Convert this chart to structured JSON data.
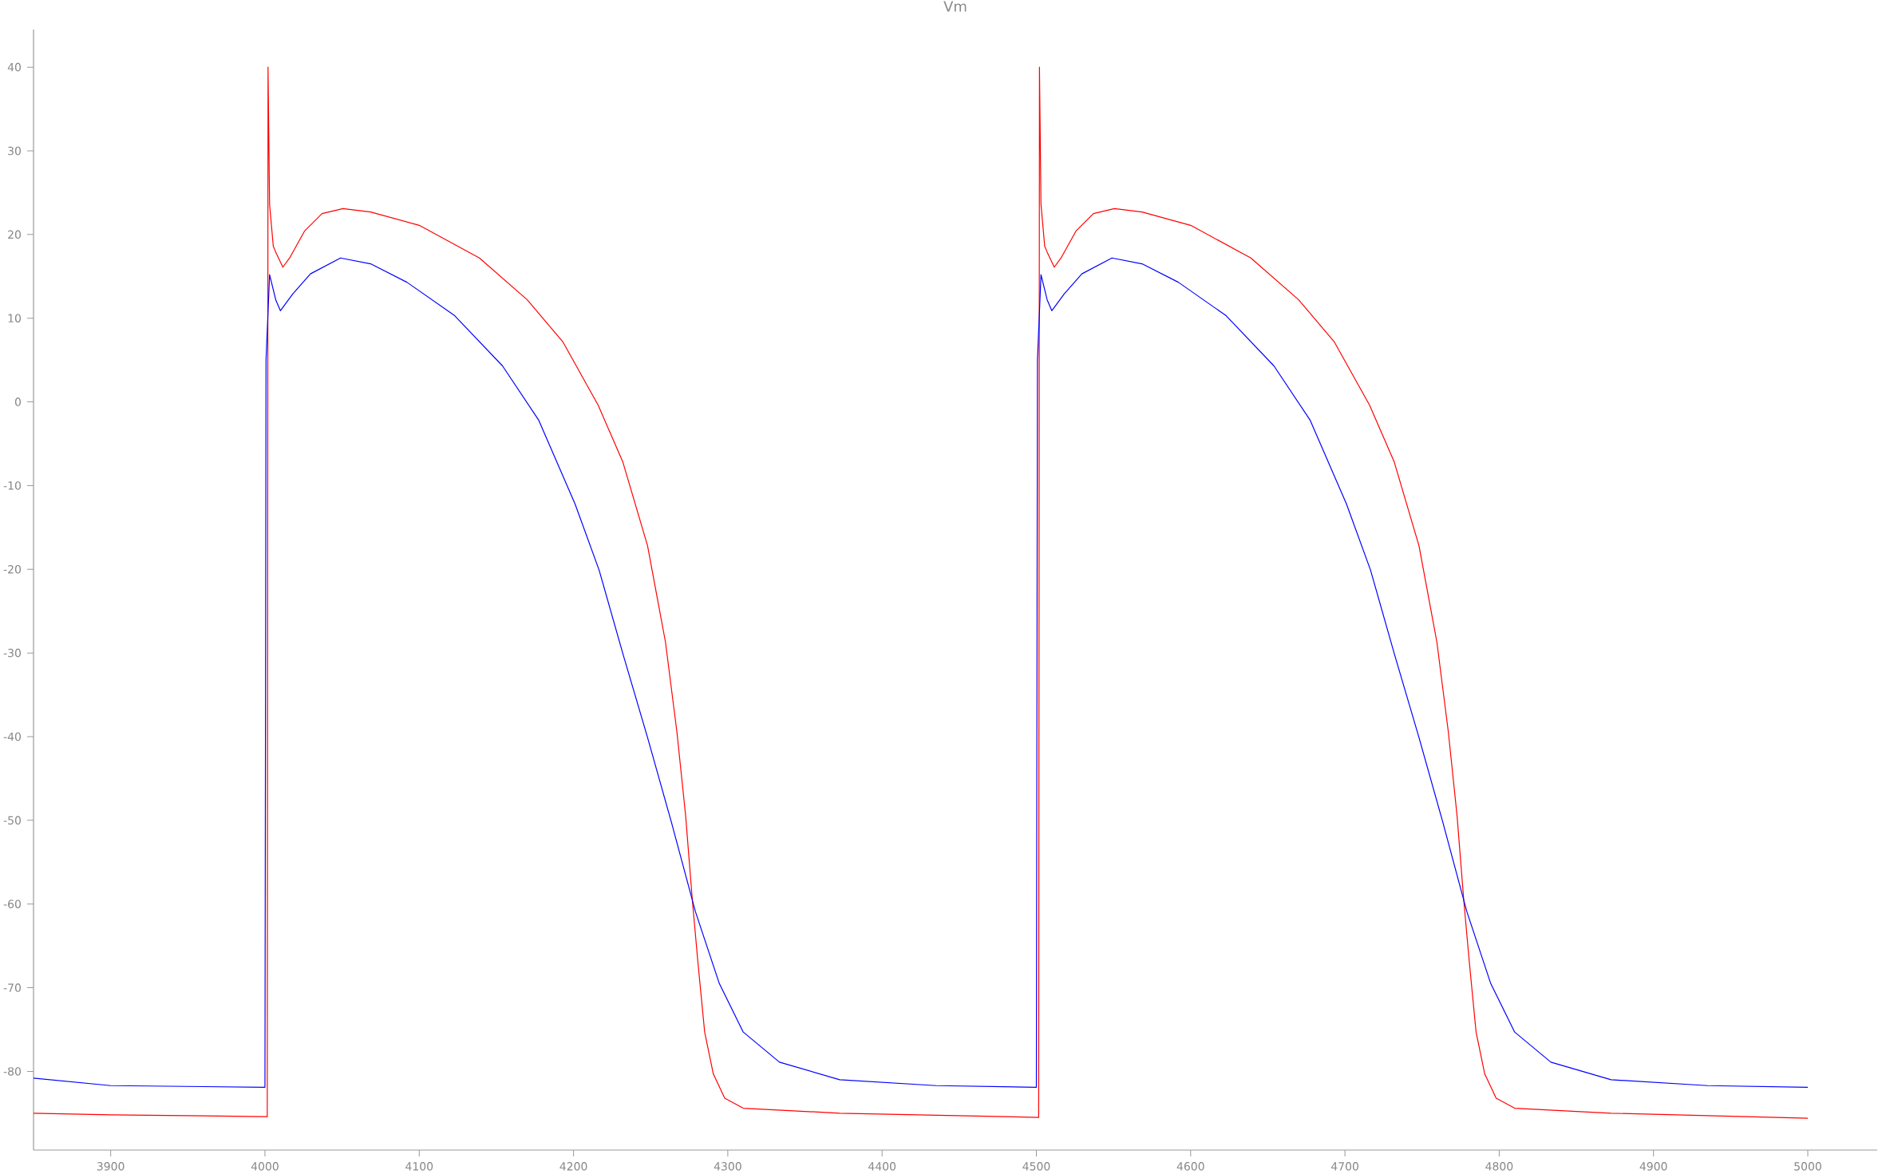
{
  "chart_data": {
    "type": "line",
    "title": "Vm",
    "xlim": [
      3850,
      5045
    ],
    "ylim": [
      -89.4,
      44.5
    ],
    "xticks": [
      3900,
      4000,
      4100,
      4200,
      4300,
      4400,
      4500,
      4600,
      4700,
      4800,
      4900,
      5000
    ],
    "yticks": [
      -80,
      -70,
      -60,
      -50,
      -40,
      -30,
      -20,
      -10,
      0,
      10,
      20,
      30,
      40
    ],
    "series": [
      {
        "color": "#ff0000",
        "x": [
          3850,
          3900,
          4000,
          4001.5,
          4002,
          4003,
          4005.4,
          4007,
          4011.6,
          4016,
          4025.6,
          4037,
          4050.6,
          4068.5,
          4100,
          4139,
          4170,
          4193,
          4216,
          4232,
          4248,
          4259.6,
          4267,
          4272.7,
          4277,
          4280.5,
          4285,
          4290.6,
          4298,
          4310,
          4372.5,
          4501.5,
          4502,
          4503,
          4505.4,
          4507,
          4511.6,
          4516,
          4525.6,
          4537,
          4550.6,
          4568.5,
          4600,
          4639,
          4670,
          4693,
          4716,
          4732,
          4748,
          4759.6,
          4767,
          4772.7,
          4777,
          4780.5,
          4785,
          4790.6,
          4798,
          4810,
          4872.5,
          5000
        ],
        "values": [
          -85.0,
          -85.2,
          -85.4,
          -85.4,
          40,
          23.6,
          18.6,
          17.9,
          16.1,
          17.2,
          20.4,
          22.5,
          23.1,
          22.7,
          21.1,
          17.2,
          12.2,
          7.2,
          -0.4,
          -7.2,
          -17.2,
          -28.7,
          -39.4,
          -49.5,
          -59.5,
          -66.7,
          -75.3,
          -80.3,
          -83.2,
          -84.4,
          -85.0,
          -85.5,
          40,
          23.6,
          18.6,
          17.9,
          16.1,
          17.2,
          20.4,
          22.5,
          23.1,
          22.7,
          21.1,
          17.2,
          12.2,
          7.2,
          -0.4,
          -7.2,
          -17.2,
          -28.7,
          -39.4,
          -49.5,
          -59.5,
          -66.7,
          -75.3,
          -80.3,
          -83.2,
          -84.4,
          -85.0,
          -85.6
        ]
      },
      {
        "color": "#0000ff",
        "x": [
          3850,
          3900,
          4000,
          4000.7,
          4003,
          4007,
          4010,
          4018,
          4029.5,
          4049,
          4068.5,
          4092,
          4123,
          4154,
          4177.5,
          4201,
          4216.6,
          4232,
          4248,
          4263.4,
          4279,
          4294.5,
          4310,
          4333.5,
          4372.5,
          4435,
          4500,
          4500.7,
          4503,
          4507,
          4510,
          4518,
          4529.5,
          4549,
          4568.5,
          4592,
          4623,
          4654,
          4677.5,
          4701,
          4716.6,
          4732,
          4748,
          4763.4,
          4779,
          4794.5,
          4810,
          4833.5,
          4872.5,
          4935,
          5000
        ],
        "values": [
          -80.8,
          -81.7,
          -81.9,
          5,
          15.2,
          12.2,
          10.9,
          12.9,
          15.3,
          17.2,
          16.5,
          14.3,
          10.3,
          4.3,
          -2.2,
          -12.2,
          -20.1,
          -30.1,
          -40.1,
          -50.2,
          -60.9,
          -69.5,
          -75.3,
          -78.9,
          -81.0,
          -81.7,
          -81.9,
          5,
          15.2,
          12.2,
          10.9,
          12.9,
          15.3,
          17.2,
          16.5,
          14.3,
          10.3,
          4.3,
          -2.2,
          -12.2,
          -20.1,
          -30.1,
          -40.1,
          -50.2,
          -60.9,
          -69.5,
          -75.3,
          -78.9,
          -81.0,
          -81.7,
          -81.9
        ]
      }
    ]
  }
}
